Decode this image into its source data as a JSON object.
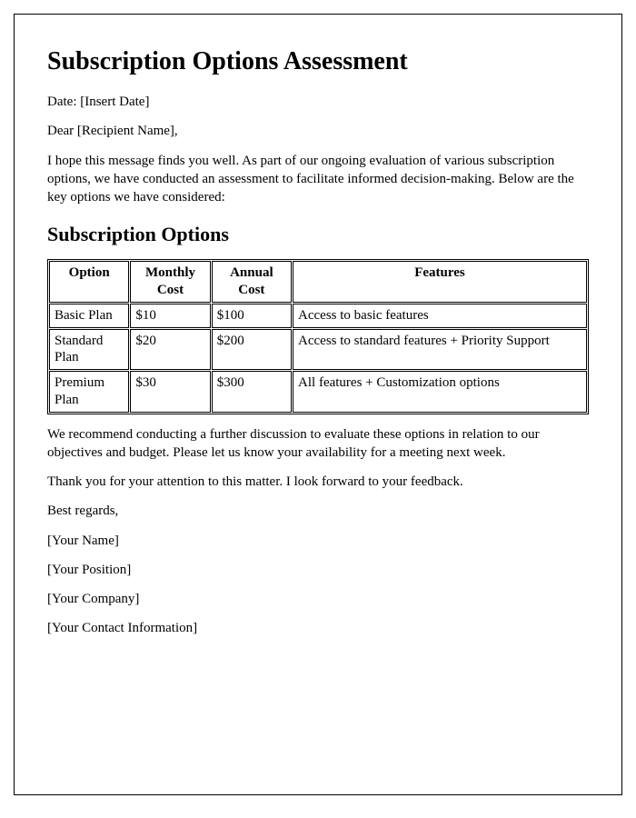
{
  "title": "Subscription Options Assessment",
  "date_line": "Date: [Insert Date]",
  "salutation": "Dear [Recipient Name],",
  "intro": "I hope this message finds you well. As part of our ongoing evaluation of various subscription options, we have conducted an assessment to facilitate informed decision-making. Below are the key options we have considered:",
  "subhead": "Subscription Options",
  "table": {
    "headers": {
      "option": "Option",
      "monthly": "Monthly Cost",
      "annual": "Annual Cost",
      "features": "Features"
    },
    "rows": [
      {
        "option": "Basic Plan",
        "monthly": "$10",
        "annual": "$100",
        "features": "Access to basic features"
      },
      {
        "option": "Standard Plan",
        "monthly": "$20",
        "annual": "$200",
        "features": "Access to standard features + Priority Support"
      },
      {
        "option": "Premium Plan",
        "monthly": "$30",
        "annual": "$300",
        "features": "All features + Customization options"
      }
    ],
    "border_color": "#000000",
    "font_size_pt": 11
  },
  "closing1": "We recommend conducting a further discussion to evaluate these options in relation to our objectives and budget. Please let us know your availability for a meeting next week.",
  "closing2": "Thank you for your attention to this matter. I look forward to your feedback.",
  "signoff": "Best regards,",
  "signature": {
    "name": "[Your Name]",
    "position": "[Your Position]",
    "company": "[Your Company]",
    "contact": "[Your Contact Information]"
  }
}
